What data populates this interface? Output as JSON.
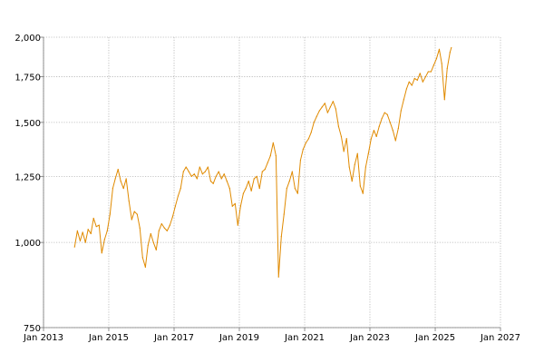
{
  "chart_data": {
    "type": "line",
    "title": "",
    "xlabel": "",
    "ylabel": "",
    "y_scale": "log",
    "xlim": [
      "2013-01-01",
      "2027-01-01"
    ],
    "ylim": [
      750,
      2000
    ],
    "grid": true,
    "x_ticks": [
      "Jan 2013",
      "Jan 2015",
      "Jan 2017",
      "Jan 2019",
      "Jan 2021",
      "Jan 2023",
      "Jan 2025",
      "Jan 2027"
    ],
    "y_ticks": [
      {
        "value": 750,
        "label": "750"
      },
      {
        "value": 1000,
        "label": "1,000"
      },
      {
        "value": 1250,
        "label": "1,250"
      },
      {
        "value": 1500,
        "label": "1,500"
      },
      {
        "value": 1750,
        "label": "1,750"
      },
      {
        "value": 2000,
        "label": "2,000"
      }
    ],
    "series": [
      {
        "color": "#e08a00",
        "points": [
          [
            "2013-12-15",
            985
          ],
          [
            "2014-01-15",
            1040
          ],
          [
            "2014-02-15",
            1005
          ],
          [
            "2014-03-15",
            1035
          ],
          [
            "2014-04-15",
            1000
          ],
          [
            "2014-05-15",
            1045
          ],
          [
            "2014-06-15",
            1030
          ],
          [
            "2014-07-15",
            1085
          ],
          [
            "2014-08-15",
            1055
          ],
          [
            "2014-09-15",
            1060
          ],
          [
            "2014-10-15",
            965
          ],
          [
            "2014-11-15",
            1010
          ],
          [
            "2014-12-15",
            1040
          ],
          [
            "2015-01-15",
            1100
          ],
          [
            "2015-02-15",
            1200
          ],
          [
            "2015-03-15",
            1240
          ],
          [
            "2015-04-15",
            1280
          ],
          [
            "2015-05-15",
            1230
          ],
          [
            "2015-06-15",
            1200
          ],
          [
            "2015-07-15",
            1240
          ],
          [
            "2015-08-15",
            1150
          ],
          [
            "2015-09-15",
            1080
          ],
          [
            "2015-10-15",
            1110
          ],
          [
            "2015-11-15",
            1100
          ],
          [
            "2015-12-15",
            1050
          ],
          [
            "2016-01-15",
            950
          ],
          [
            "2016-02-15",
            920
          ],
          [
            "2016-03-15",
            990
          ],
          [
            "2016-04-15",
            1030
          ],
          [
            "2016-05-15",
            1000
          ],
          [
            "2016-06-15",
            975
          ],
          [
            "2016-07-15",
            1040
          ],
          [
            "2016-08-15",
            1065
          ],
          [
            "2016-09-15",
            1050
          ],
          [
            "2016-10-15",
            1040
          ],
          [
            "2016-11-15",
            1060
          ],
          [
            "2016-12-15",
            1090
          ],
          [
            "2017-01-15",
            1130
          ],
          [
            "2017-02-15",
            1170
          ],
          [
            "2017-03-15",
            1200
          ],
          [
            "2017-04-15",
            1270
          ],
          [
            "2017-05-15",
            1290
          ],
          [
            "2017-06-15",
            1270
          ],
          [
            "2017-07-15",
            1250
          ],
          [
            "2017-08-15",
            1260
          ],
          [
            "2017-09-15",
            1240
          ],
          [
            "2017-10-15",
            1290
          ],
          [
            "2017-11-15",
            1260
          ],
          [
            "2017-12-15",
            1270
          ],
          [
            "2018-01-15",
            1290
          ],
          [
            "2018-02-15",
            1230
          ],
          [
            "2018-03-15",
            1220
          ],
          [
            "2018-04-15",
            1250
          ],
          [
            "2018-05-15",
            1270
          ],
          [
            "2018-06-15",
            1240
          ],
          [
            "2018-07-15",
            1260
          ],
          [
            "2018-08-15",
            1230
          ],
          [
            "2018-09-15",
            1200
          ],
          [
            "2018-10-15",
            1130
          ],
          [
            "2018-11-15",
            1140
          ],
          [
            "2018-12-15",
            1060
          ],
          [
            "2019-01-15",
            1130
          ],
          [
            "2019-02-15",
            1180
          ],
          [
            "2019-03-15",
            1200
          ],
          [
            "2019-04-15",
            1230
          ],
          [
            "2019-05-15",
            1190
          ],
          [
            "2019-06-15",
            1240
          ],
          [
            "2019-07-15",
            1250
          ],
          [
            "2019-08-15",
            1200
          ],
          [
            "2019-09-15",
            1270
          ],
          [
            "2019-10-15",
            1280
          ],
          [
            "2019-11-15",
            1310
          ],
          [
            "2019-12-15",
            1340
          ],
          [
            "2020-01-15",
            1400
          ],
          [
            "2020-02-15",
            1340
          ],
          [
            "2020-03-15",
            890
          ],
          [
            "2020-04-15",
            1020
          ],
          [
            "2020-05-15",
            1100
          ],
          [
            "2020-06-15",
            1200
          ],
          [
            "2020-07-15",
            1230
          ],
          [
            "2020-08-15",
            1270
          ],
          [
            "2020-09-15",
            1200
          ],
          [
            "2020-10-15",
            1180
          ],
          [
            "2020-11-15",
            1320
          ],
          [
            "2020-12-15",
            1370
          ],
          [
            "2021-01-15",
            1400
          ],
          [
            "2021-02-15",
            1420
          ],
          [
            "2021-03-15",
            1450
          ],
          [
            "2021-04-15",
            1500
          ],
          [
            "2021-05-15",
            1530
          ],
          [
            "2021-06-15",
            1560
          ],
          [
            "2021-07-15",
            1580
          ],
          [
            "2021-08-15",
            1600
          ],
          [
            "2021-09-15",
            1550
          ],
          [
            "2021-10-15",
            1580
          ],
          [
            "2021-11-15",
            1610
          ],
          [
            "2021-12-15",
            1570
          ],
          [
            "2022-01-15",
            1480
          ],
          [
            "2022-02-15",
            1430
          ],
          [
            "2022-03-15",
            1360
          ],
          [
            "2022-04-15",
            1420
          ],
          [
            "2022-05-15",
            1290
          ],
          [
            "2022-06-15",
            1230
          ],
          [
            "2022-07-15",
            1300
          ],
          [
            "2022-08-15",
            1350
          ],
          [
            "2022-09-15",
            1210
          ],
          [
            "2022-10-15",
            1180
          ],
          [
            "2022-11-15",
            1290
          ],
          [
            "2022-12-15",
            1350
          ],
          [
            "2023-01-15",
            1420
          ],
          [
            "2023-02-15",
            1460
          ],
          [
            "2023-03-15",
            1430
          ],
          [
            "2023-04-15",
            1480
          ],
          [
            "2023-05-15",
            1520
          ],
          [
            "2023-06-15",
            1550
          ],
          [
            "2023-07-15",
            1540
          ],
          [
            "2023-08-15",
            1500
          ],
          [
            "2023-09-15",
            1460
          ],
          [
            "2023-10-15",
            1410
          ],
          [
            "2023-11-15",
            1470
          ],
          [
            "2023-12-15",
            1560
          ],
          [
            "2024-01-15",
            1620
          ],
          [
            "2024-02-15",
            1680
          ],
          [
            "2024-03-15",
            1720
          ],
          [
            "2024-04-15",
            1700
          ],
          [
            "2024-05-15",
            1740
          ],
          [
            "2024-06-15",
            1730
          ],
          [
            "2024-07-15",
            1770
          ],
          [
            "2024-08-15",
            1720
          ],
          [
            "2024-09-15",
            1750
          ],
          [
            "2024-10-15",
            1780
          ],
          [
            "2024-11-15",
            1780
          ],
          [
            "2024-12-15",
            1820
          ],
          [
            "2025-01-15",
            1860
          ],
          [
            "2025-02-15",
            1920
          ],
          [
            "2025-03-15",
            1830
          ],
          [
            "2025-04-15",
            1620
          ],
          [
            "2025-05-15",
            1800
          ],
          [
            "2025-06-15",
            1900
          ],
          [
            "2025-06-30",
            1930
          ]
        ]
      }
    ]
  }
}
